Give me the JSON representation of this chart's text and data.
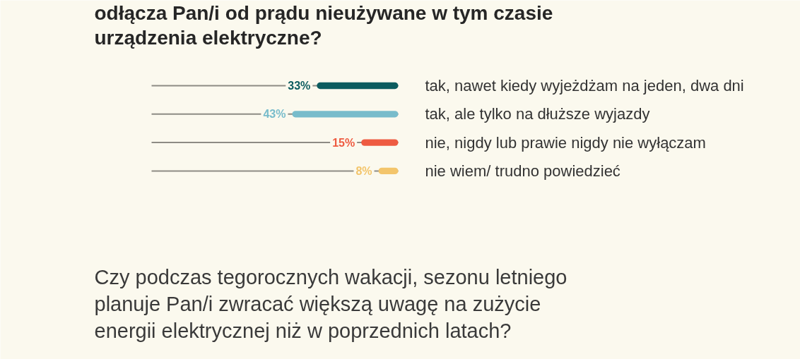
{
  "chart_data": {
    "type": "bar",
    "orientation": "horizontal",
    "title": "odłącza Pan/i od prądu nieużywane w tym czasie urządzenia elektryczne?",
    "annotations": [
      "Czy podczas tegorocznych wakacji, sezonu letniego planuje Pan/i zwracać większą uwagę na zużycie energii elektrycznej niż w poprzednich latach?"
    ],
    "categories": [
      "tak, nawet kiedy wyjeżdżam na jeden, dwa dni",
      "tak, ale tylko na dłuższe wyjazdy",
      "nie, nigdy lub prawie nigdy nie wyłączam",
      "nie wiem/ trudno powiedzieć"
    ],
    "values": [
      33,
      43,
      15,
      8
    ],
    "colors": [
      "#0c5c5f",
      "#78bccb",
      "#ee5b41",
      "#f3c56b"
    ],
    "value_labels": [
      "33%",
      "43%",
      "15%",
      "8%"
    ],
    "xlim": [
      100,
      0
    ],
    "grid": "y",
    "tick_labels": "y"
  }
}
